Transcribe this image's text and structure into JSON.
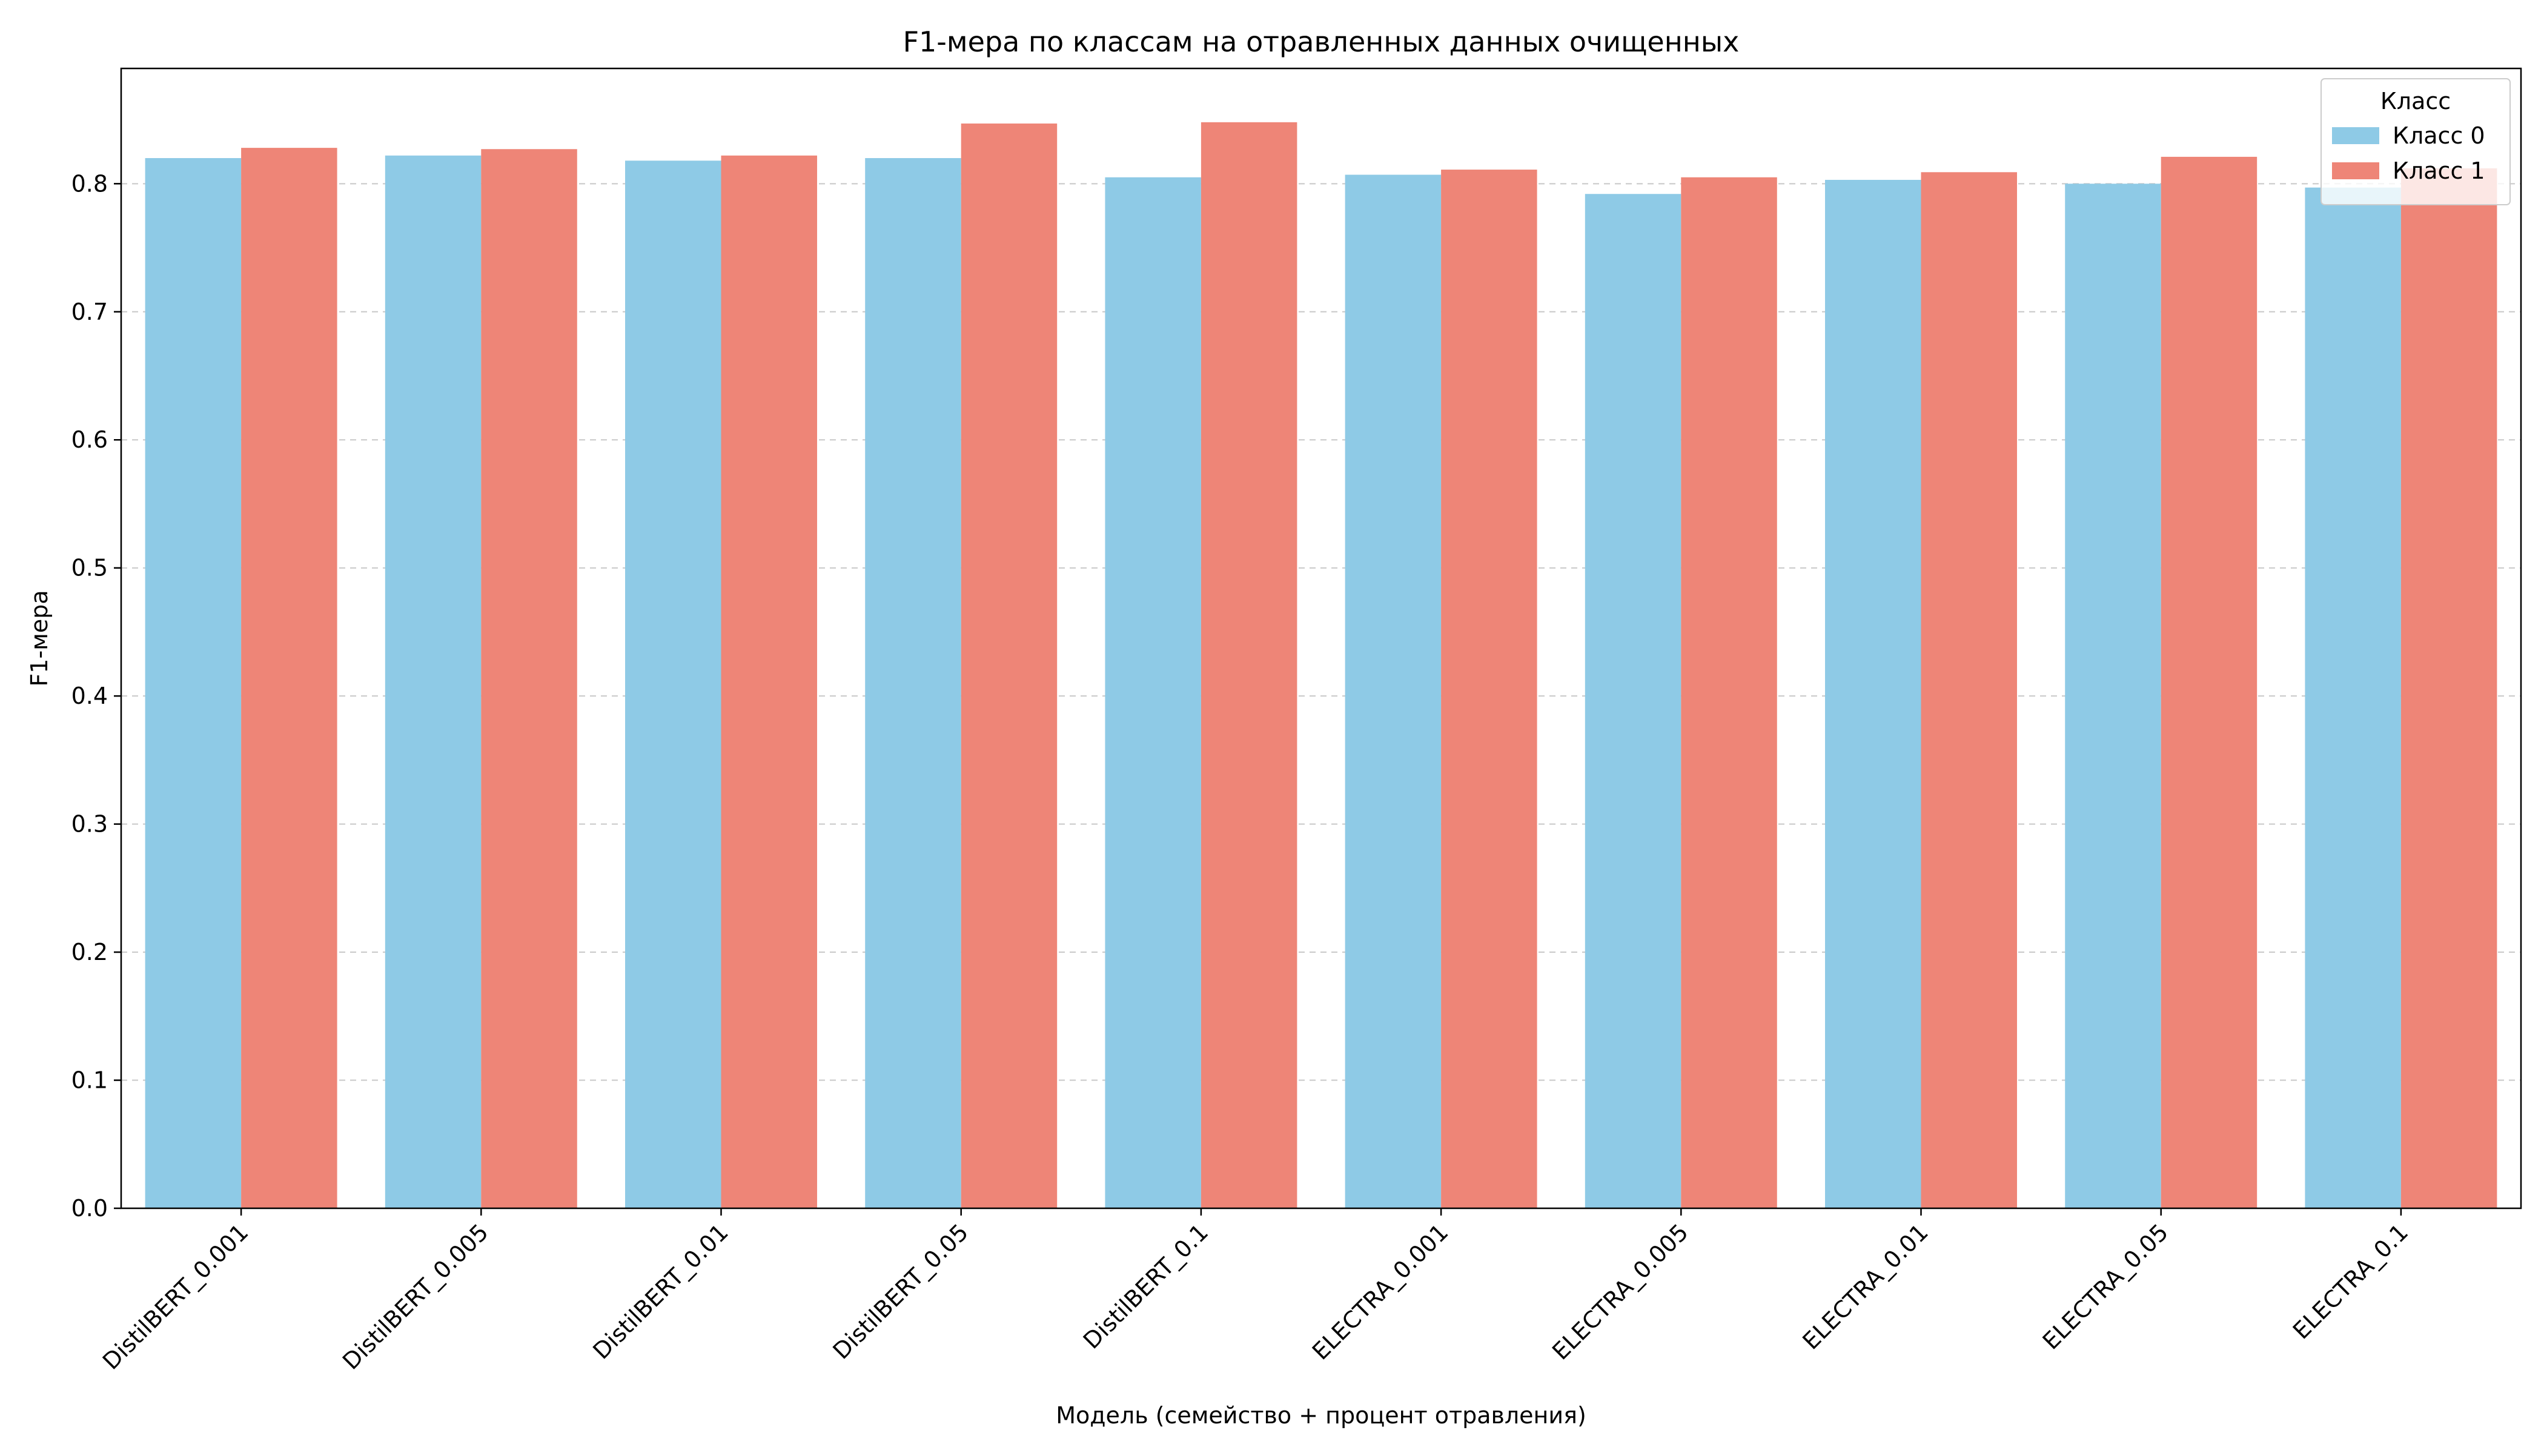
{
  "chart_data": {
    "type": "bar",
    "title": "F1-мера по классам на отравленных данных очищенных",
    "xlabel": "Модель (семейство + процент отравления)",
    "ylabel": "F1-мера",
    "categories": [
      "DistilBERT_0.001",
      "DistilBERT_0.005",
      "DistilBERT_0.01",
      "DistilBERT_0.05",
      "DistilBERT_0.1",
      "ELECTRA_0.001",
      "ELECTRA_0.005",
      "ELECTRA_0.01",
      "ELECTRA_0.05",
      "ELECTRA_0.1"
    ],
    "series": [
      {
        "name": "Класс 0",
        "color": "#8ecae6",
        "values": [
          0.82,
          0.822,
          0.818,
          0.82,
          0.805,
          0.807,
          0.792,
          0.803,
          0.8,
          0.797
        ]
      },
      {
        "name": "Класс 1",
        "color": "#ee8577",
        "values": [
          0.828,
          0.827,
          0.822,
          0.847,
          0.848,
          0.811,
          0.805,
          0.809,
          0.821,
          0.812
        ]
      }
    ],
    "ylim": [
      0,
      0.89
    ],
    "yticks": [
      "0.0",
      "0.1",
      "0.2",
      "0.3",
      "0.4",
      "0.5",
      "0.6",
      "0.7",
      "0.8"
    ],
    "grid": "y-dashed",
    "legend": {
      "title": "Класс",
      "position": "top-right"
    }
  }
}
